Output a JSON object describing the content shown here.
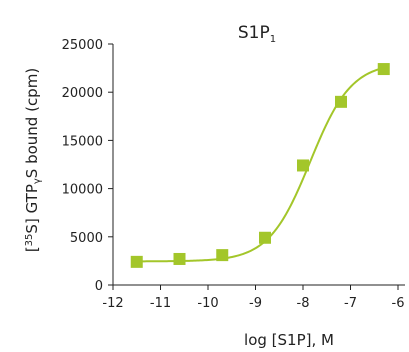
{
  "chart_data": {
    "type": "scatter",
    "title": "S1P",
    "title_subscript": "1",
    "xlabel": "log [S1P], M",
    "ylabel_parts": [
      "[",
      "35",
      "S] GTP",
      "γ",
      "S bound (cpm)"
    ],
    "xlim": [
      -12,
      -6
    ],
    "ylim": [
      0,
      25000
    ],
    "x_ticks": [
      -12,
      -11,
      -10,
      -9,
      -8,
      -7,
      -6
    ],
    "x_tick_labels": [
      "-12",
      "-11",
      "-10",
      "-9",
      "-8",
      "-7",
      "-6"
    ],
    "y_ticks": [
      0,
      5000,
      10000,
      15000,
      20000,
      25000
    ],
    "y_tick_labels": [
      "0",
      "5000",
      "10000",
      "15000",
      "20000",
      "25000"
    ],
    "grid": false,
    "marker": "square",
    "series": [
      {
        "x": [
          -11.5,
          -10.6,
          -9.7,
          -8.8,
          -8.0,
          -7.2,
          -6.3
        ],
        "y": [
          2400,
          2700,
          3100,
          4900,
          12400,
          19000,
          22400
        ],
        "fit": {
          "bottom": 2450,
          "top": 23100,
          "log_ec50": -7.85,
          "hill": 1.0
        }
      }
    ],
    "colors": {
      "series": "#a3c62a",
      "axis": "#222222"
    }
  }
}
